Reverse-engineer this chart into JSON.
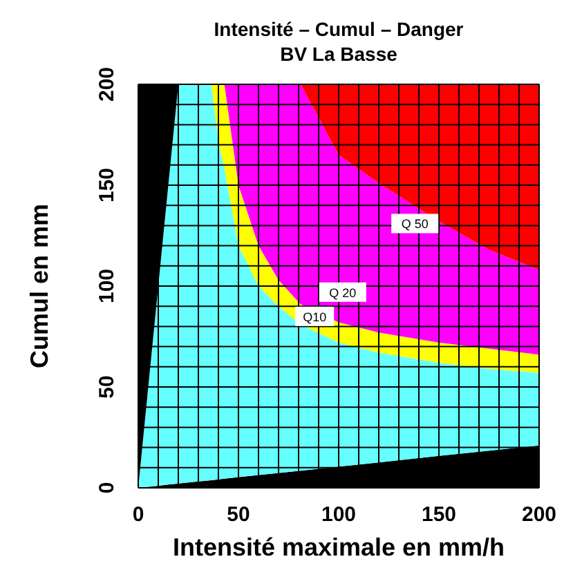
{
  "chart_data": {
    "type": "area",
    "title": "Intensité – Cumul – Danger",
    "subtitle": "BV La Basse",
    "xlabel": "Intensité maximale en mm/h",
    "ylabel": "Cumul en mm",
    "stacked": true,
    "grid": true,
    "legend": false,
    "x": [
      0,
      5,
      10,
      15,
      20,
      30,
      36.5,
      40,
      43,
      50,
      60,
      70,
      81,
      100,
      120,
      150,
      175,
      200
    ],
    "series": [
      {
        "color": "#000000",
        "values": [
          0,
          0.5,
          1,
          1.6,
          2.1,
          3.2,
          3.8,
          4.2,
          4.5,
          5.3,
          6.3,
          7.4,
          8.5,
          10.5,
          12.6,
          15.8,
          18.4,
          21
        ]
      },
      {
        "color": "#66ffff",
        "values": [
          0,
          49.5,
          99,
          148.4,
          197.9,
          196.8,
          196.2,
          167.8,
          153.5,
          114.7,
          93.7,
          82.6,
          72.5,
          61.5,
          54.4,
          46.2,
          40.6,
          36
        ]
      },
      {
        "color": "#ffff00",
        "values": [
          null,
          null,
          null,
          null,
          null,
          null,
          0,
          28,
          42,
          30,
          20,
          13,
          10,
          10,
          10,
          10,
          10,
          9
        ]
      },
      {
        "color": "#ff00ff",
        "values": [
          null,
          null,
          null,
          null,
          null,
          null,
          null,
          null,
          0,
          50,
          80,
          97,
          109,
          83,
          74,
          60,
          49,
          42
        ]
      },
      {
        "color": "#ff0000",
        "values": [
          null,
          null,
          null,
          null,
          null,
          null,
          null,
          null,
          null,
          null,
          null,
          null,
          0,
          35,
          49,
          68,
          82,
          92
        ]
      },
      {
        "color": "#000000",
        "values": [
          200,
          150,
          100,
          50,
          0,
          null,
          null,
          null,
          null,
          null,
          null,
          null,
          null,
          null,
          null,
          null,
          null,
          null
        ]
      }
    ],
    "xlim": [
      0,
      200
    ],
    "ylim": [
      0,
      200
    ],
    "xticks": [
      0,
      {
        "value": 10,
        "label": null
      },
      {
        "value": 20,
        "label": null
      },
      {
        "value": 30,
        "label": null
      },
      {
        "value": 40,
        "label": null
      },
      50,
      {
        "value": 60,
        "label": null
      },
      {
        "value": 70,
        "label": null
      },
      {
        "value": 80,
        "label": null
      },
      {
        "value": 90,
        "label": null
      },
      100,
      {
        "value": 110,
        "label": null
      },
      {
        "value": 120,
        "label": null
      },
      {
        "value": 130,
        "label": null
      },
      {
        "value": 140,
        "label": null
      },
      150,
      {
        "value": 160,
        "label": null
      },
      {
        "value": 170,
        "label": null
      },
      {
        "value": 180,
        "label": null
      },
      {
        "value": 190,
        "label": null
      },
      200
    ],
    "yticks": [
      0,
      {
        "value": 10,
        "label": null
      },
      {
        "value": 20,
        "label": null
      },
      {
        "value": 30,
        "label": null
      },
      {
        "value": 40,
        "label": null
      },
      50,
      {
        "value": 60,
        "label": null
      },
      {
        "value": 70,
        "label": null
      },
      {
        "value": 80,
        "label": null
      },
      {
        "value": 90,
        "label": null
      },
      100,
      {
        "value": 110,
        "label": null
      },
      {
        "value": 120,
        "label": null
      },
      {
        "value": 130,
        "label": null
      },
      {
        "value": 140,
        "label": null
      },
      150,
      {
        "value": 160,
        "label": null
      },
      {
        "value": 170,
        "label": null
      },
      {
        "value": 180,
        "label": null
      },
      {
        "value": 190,
        "label": null
      },
      200
    ],
    "annotations": [
      {
        "text": "Q 50",
        "x": 138,
        "y": 131
      },
      {
        "text": "Q 20",
        "x": 102,
        "y": 97
      },
      {
        "text": "Q10",
        "x": 88,
        "y": 85
      }
    ]
  }
}
